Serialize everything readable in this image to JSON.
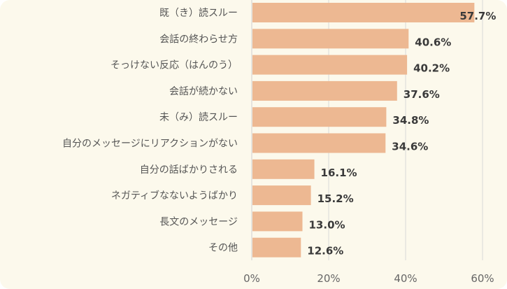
{
  "chart_data": {
    "type": "bar",
    "orientation": "horizontal",
    "title": "",
    "xlabel": "",
    "ylabel": "",
    "categories": [
      "既（き）読スルー",
      "会話の終わらせ方",
      "そっけない反応（はんのう）",
      "会話が続かない",
      "未（み）読スルー",
      "自分のメッセージにリアクションがない",
      "自分の話ばかりされる",
      "ネガティブなないようばかり",
      "長文のメッセージ",
      "その他"
    ],
    "values": [
      57.7,
      40.6,
      40.2,
      37.6,
      34.8,
      34.6,
      16.1,
      15.2,
      13.0,
      12.6
    ],
    "value_labels": [
      "57.7%",
      "40.6%",
      "40.2%",
      "37.6%",
      "34.8%",
      "34.6%",
      "16.1%",
      "15.2%",
      "13.0%",
      "12.6%"
    ],
    "xlim": [
      0,
      60
    ],
    "xticks": [
      0,
      20,
      40,
      60
    ],
    "xtick_labels": [
      "0%",
      "20%",
      "40%",
      "60%"
    ],
    "grid": true,
    "colors": {
      "bar": "#edb892",
      "background": "#fcf9ec",
      "grid": "#d9d9d9"
    }
  }
}
